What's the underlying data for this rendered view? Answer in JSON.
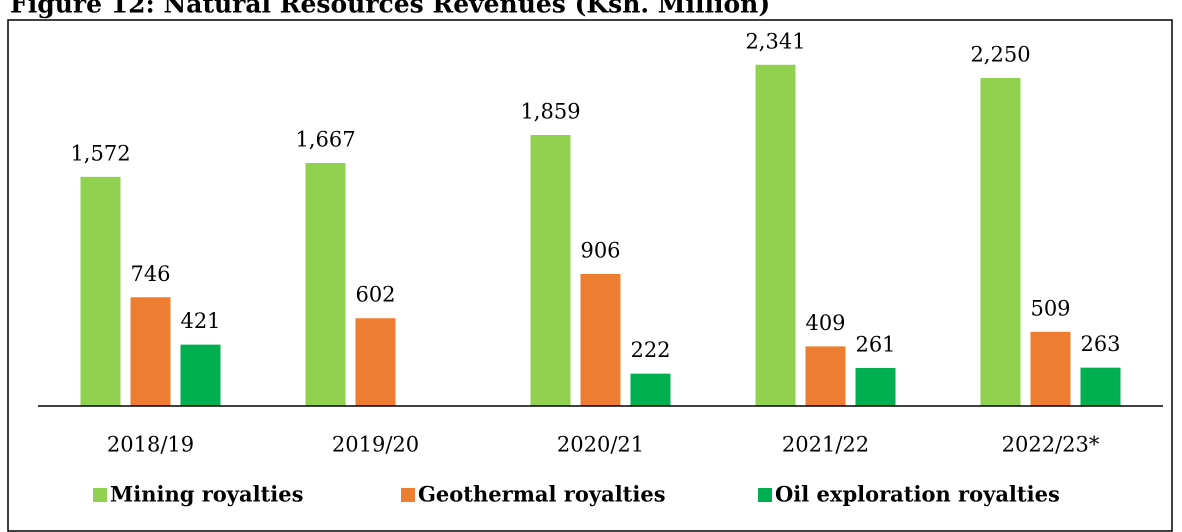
{
  "chart_data": {
    "type": "bar",
    "title": "Figure 12: Natural Resources Revenues (Ksh. Million)",
    "categories": [
      "2018/19",
      "2019/20",
      "2020/21",
      "2021/22",
      "2022/23*"
    ],
    "series": [
      {
        "name": "Mining royalties",
        "color": "#92d050",
        "values": [
          1572,
          1667,
          1859,
          2341,
          2250
        ],
        "value_labels": [
          "1,572",
          "1,667",
          "1,859",
          "2,341",
          "2,250"
        ]
      },
      {
        "name": "Geothermal royalties",
        "color": "#ed7d31",
        "values": [
          746,
          602,
          906,
          409,
          509
        ],
        "value_labels": [
          "746",
          "602",
          "906",
          "409",
          "509"
        ]
      },
      {
        "name": "Oil exploration royalties",
        "color": "#00b050",
        "values": [
          421,
          null,
          222,
          261,
          263
        ],
        "value_labels": [
          "421",
          null,
          "222",
          "261",
          "263"
        ]
      }
    ],
    "ylim": [
      0,
      2600
    ],
    "legend": "bottom"
  }
}
